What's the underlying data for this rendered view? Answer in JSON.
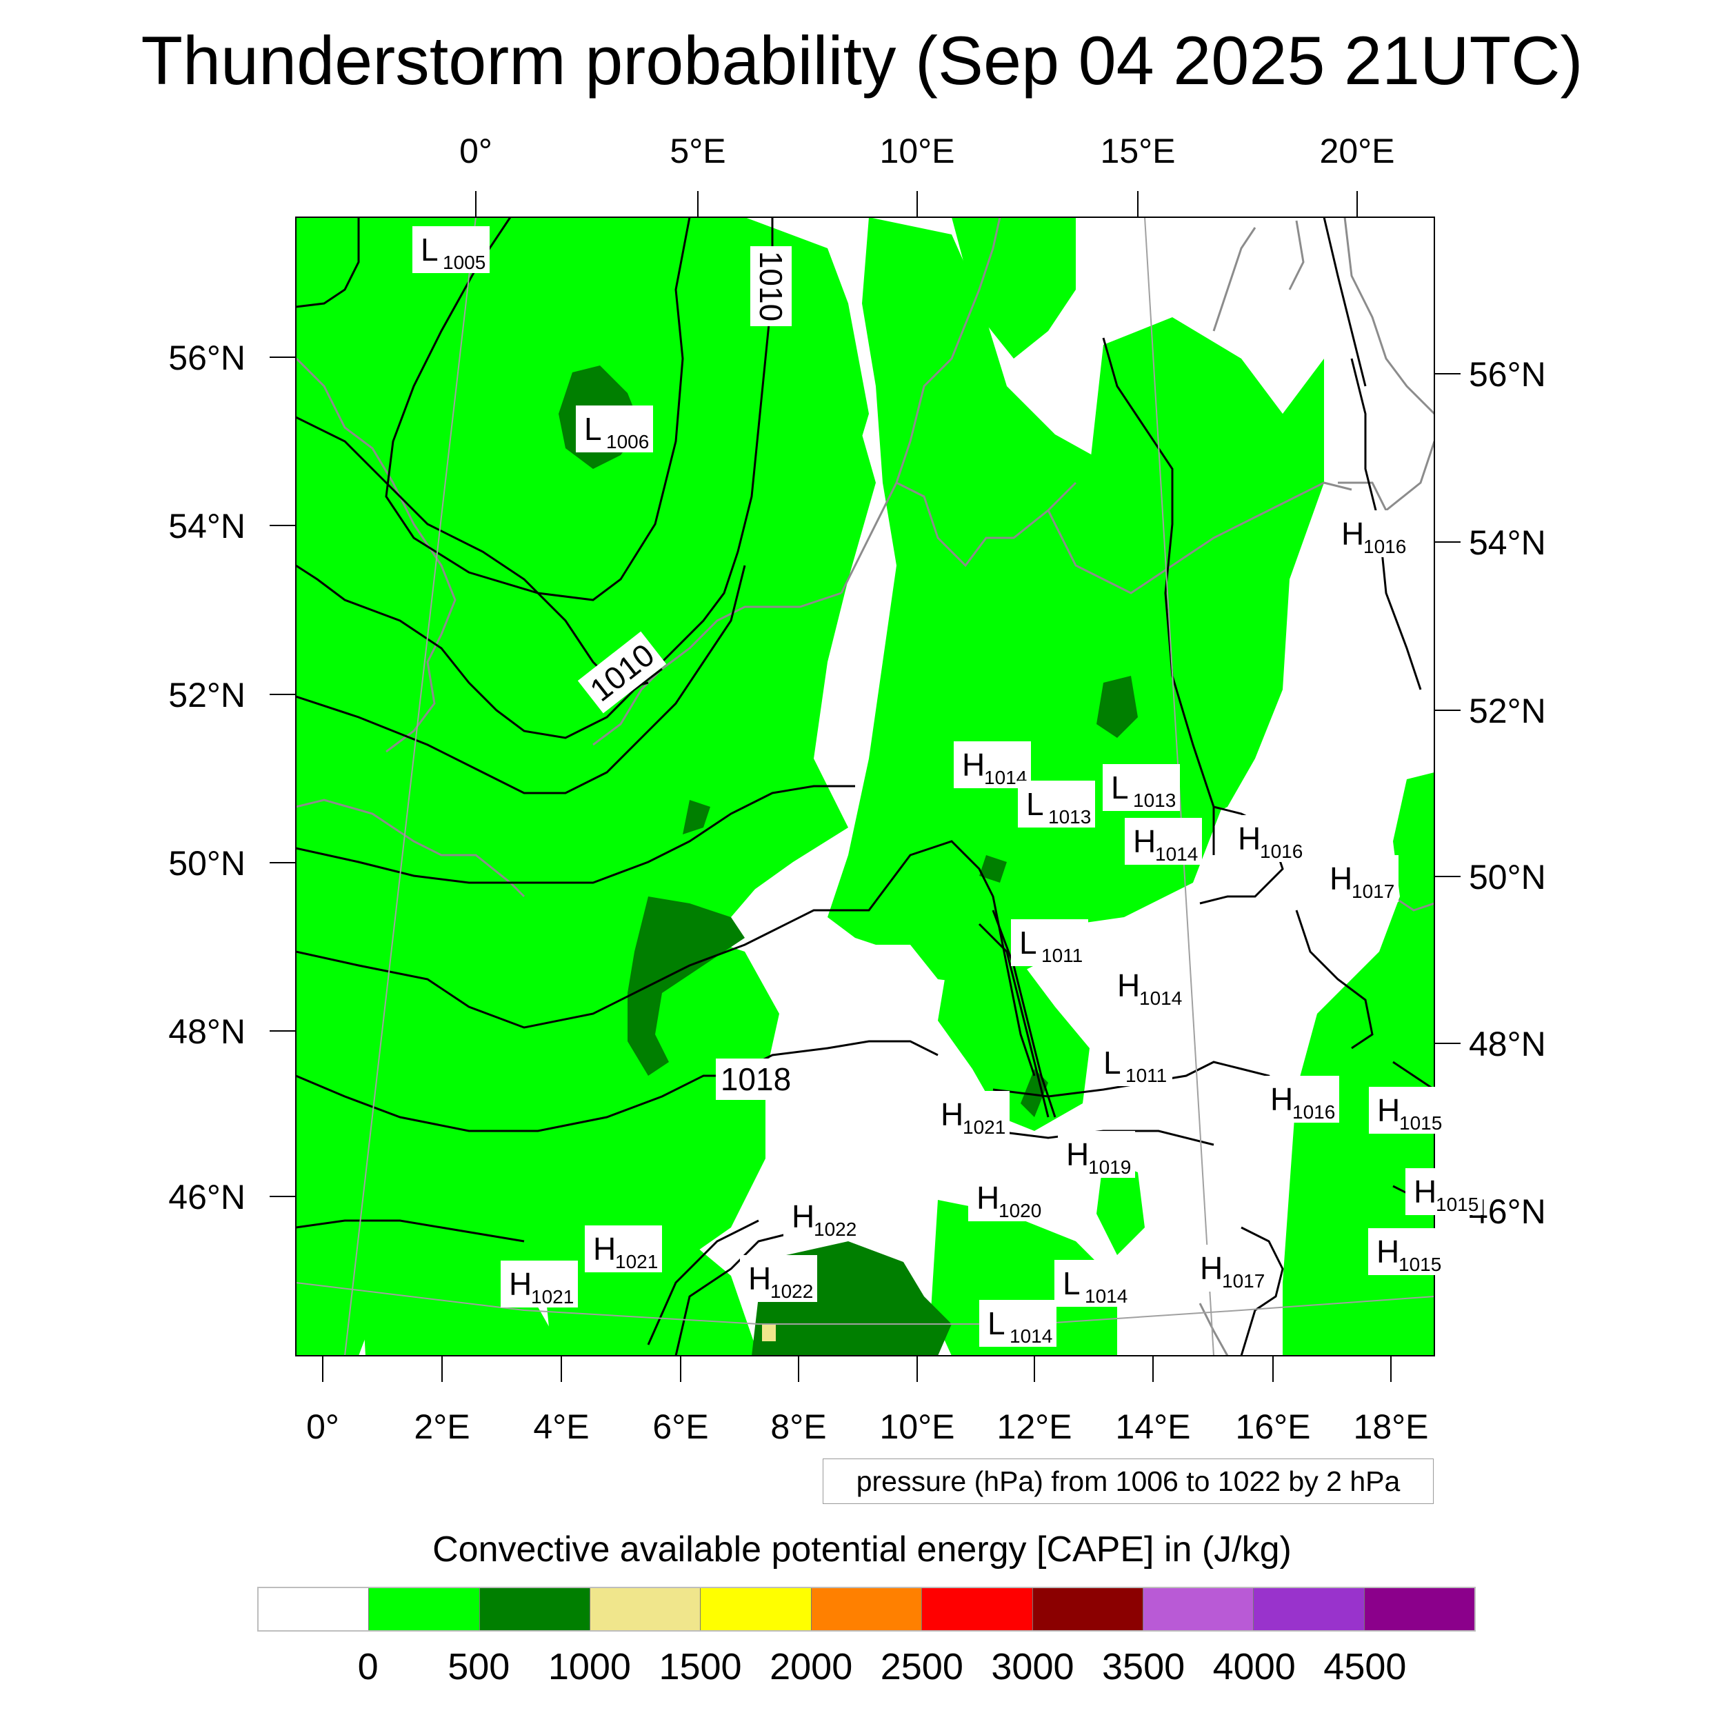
{
  "title": "Thunderstorm probability (Sep 04 2025 21UTC)",
  "top_lon_labels": [
    "0°",
    "5°E",
    "10°E",
    "15°E",
    "20°E"
  ],
  "bottom_lon_labels": [
    "0°",
    "2°E",
    "4°E",
    "6°E",
    "8°E",
    "10°E",
    "12°E",
    "14°E",
    "16°E",
    "18°E"
  ],
  "left_lat_labels": [
    "56°N",
    "54°N",
    "52°N",
    "50°N",
    "48°N",
    "46°N"
  ],
  "right_lat_labels": [
    "56°N",
    "54°N",
    "52°N",
    "50°N",
    "48°N",
    "46°N"
  ],
  "isobar_labels": [
    "1010",
    "1010",
    "1018"
  ],
  "pressure_centers": [
    {
      "letter": "L",
      "value": "1005"
    },
    {
      "letter": "L",
      "value": "1006"
    },
    {
      "letter": "H",
      "value": "1014"
    },
    {
      "letter": "L",
      "value": "1013"
    },
    {
      "letter": "L",
      "value": "1013"
    },
    {
      "letter": "H",
      "value": "1014"
    },
    {
      "letter": "H",
      "value": "1016"
    },
    {
      "letter": "H",
      "value": "1017"
    },
    {
      "letter": "H",
      "value": "1016"
    },
    {
      "letter": "L",
      "value": "1011"
    },
    {
      "letter": "H",
      "value": "1014"
    },
    {
      "letter": "L",
      "value": "1011"
    },
    {
      "letter": "H",
      "value": "1016"
    },
    {
      "letter": "H",
      "value": "1015"
    },
    {
      "letter": "H",
      "value": "1021"
    },
    {
      "letter": "H",
      "value": "1019"
    },
    {
      "letter": "H",
      "value": "1020"
    },
    {
      "letter": "H",
      "value": "1022"
    },
    {
      "letter": "H",
      "value": "1022"
    },
    {
      "letter": "H",
      "value": "1021"
    },
    {
      "letter": "H",
      "value": "1021"
    },
    {
      "letter": "L",
      "value": "1014"
    },
    {
      "letter": "L",
      "value": "1014"
    },
    {
      "letter": "H",
      "value": "1017"
    },
    {
      "letter": "H",
      "value": "1015"
    },
    {
      "letter": "H",
      "value": "1015"
    }
  ],
  "contour_info": "pressure (hPa) from 1006 to 1022 by 2 hPa",
  "colorbar": {
    "title": "Convective available potential energy [CAPE] in (J/kg)",
    "colors": [
      "#ffffff",
      "#00ff00",
      "#007f00",
      "#f0e68c",
      "#ffff00",
      "#ff8000",
      "#ff0000",
      "#8b0000",
      "#b95ad6",
      "#9933cc",
      "#8b008b"
    ],
    "ticks": [
      "0",
      "500",
      "1000",
      "1500",
      "2000",
      "2500",
      "3000",
      "3500",
      "4000",
      "4500"
    ]
  },
  "colors": {
    "cape_0_500": "#00ff00",
    "cape_500_1000": "#007f00",
    "cape_1000_1500": "#f0e68c",
    "coastline": "#8c8c8c",
    "isobar": "#000000",
    "graticule": "#a0a0a0"
  }
}
